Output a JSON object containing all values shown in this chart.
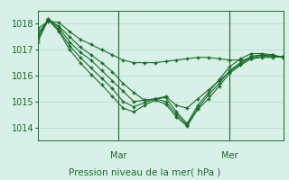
{
  "title": "Pression niveau de la mer( hPa )",
  "bg_color": "#d8f0e8",
  "grid_color": "#b0d8c8",
  "line_color": "#1a6b2a",
  "marker_color": "#1a6b2a",
  "ylim": [
    1013.5,
    1018.5
  ],
  "yticks": [
    1014,
    1015,
    1016,
    1017,
    1018
  ],
  "day_labels": [
    "Mar",
    "Mer"
  ],
  "day_positions": [
    0.33,
    0.78
  ],
  "series": [
    [
      1017.8,
      1018.1,
      1018.05,
      1017.7,
      1017.4,
      1017.2,
      1017.0,
      1016.8,
      1016.6,
      1016.5,
      1016.5,
      1016.5,
      1016.55,
      1016.6,
      1016.65,
      1016.7,
      1016.7,
      1016.65,
      1016.6,
      1016.6,
      1016.65,
      1016.7,
      1016.7,
      1016.75
    ],
    [
      1017.6,
      1018.15,
      1017.9,
      1017.5,
      1017.1,
      1016.8,
      1016.5,
      1016.15,
      1015.7,
      1015.35,
      1015.05,
      1015.1,
      1015.2,
      1014.85,
      1014.75,
      1015.1,
      1015.45,
      1015.8,
      1016.15,
      1016.45,
      1016.7,
      1016.8,
      1016.75,
      1016.7
    ],
    [
      1017.5,
      1018.2,
      1017.85,
      1017.3,
      1016.9,
      1016.6,
      1016.2,
      1015.8,
      1015.4,
      1015.0,
      1015.05,
      1015.1,
      1015.15,
      1014.6,
      1014.15,
      1014.85,
      1015.35,
      1015.85,
      1016.35,
      1016.65,
      1016.85,
      1016.85,
      1016.8,
      1016.7
    ],
    [
      1017.4,
      1018.2,
      1017.75,
      1017.15,
      1016.7,
      1016.3,
      1015.9,
      1015.5,
      1015.0,
      1014.8,
      1014.95,
      1015.1,
      1015.0,
      1014.5,
      1014.1,
      1014.75,
      1015.25,
      1015.7,
      1016.2,
      1016.5,
      1016.75,
      1016.8,
      1016.8,
      1016.7
    ],
    [
      1017.3,
      1018.15,
      1017.7,
      1017.0,
      1016.5,
      1016.05,
      1015.65,
      1015.2,
      1014.75,
      1014.6,
      1014.85,
      1015.05,
      1014.9,
      1014.4,
      1014.05,
      1014.7,
      1015.1,
      1015.6,
      1016.1,
      1016.4,
      1016.65,
      1016.75,
      1016.75,
      1016.7
    ]
  ]
}
